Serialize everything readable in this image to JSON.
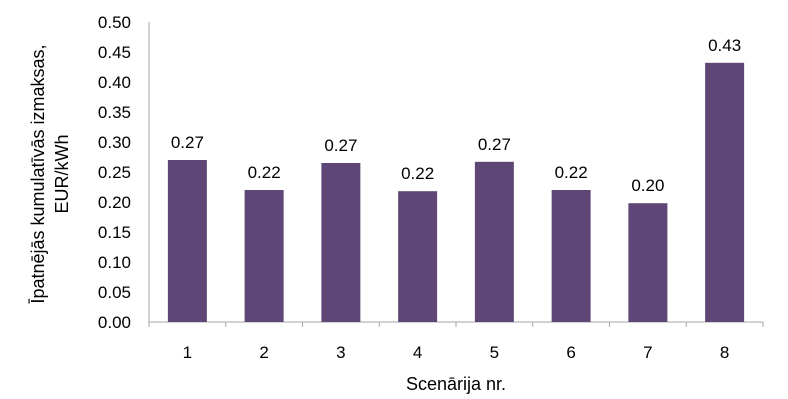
{
  "chart_data": {
    "type": "bar",
    "categories": [
      "1",
      "2",
      "3",
      "4",
      "5",
      "6",
      "7",
      "8"
    ],
    "values": [
      0.27,
      0.22,
      0.265,
      0.218,
      0.267,
      0.22,
      0.198,
      0.432
    ],
    "data_labels": [
      "0.27",
      "0.22",
      "0.27",
      "0.22",
      "0.27",
      "0.22",
      "0.20",
      "0.43"
    ],
    "xlabel": "Scenārija nr.",
    "ylabel_lines": [
      "Īpatnējās kumulatīvās izmaksas,",
      "EUR/kWh"
    ],
    "ylim": [
      0,
      0.5
    ],
    "yticks": [
      "0.00",
      "0.05",
      "0.10",
      "0.15",
      "0.20",
      "0.25",
      "0.30",
      "0.35",
      "0.40",
      "0.45",
      "0.50"
    ],
    "bar_color": "#5e4776",
    "grid": false,
    "legend": "none"
  }
}
